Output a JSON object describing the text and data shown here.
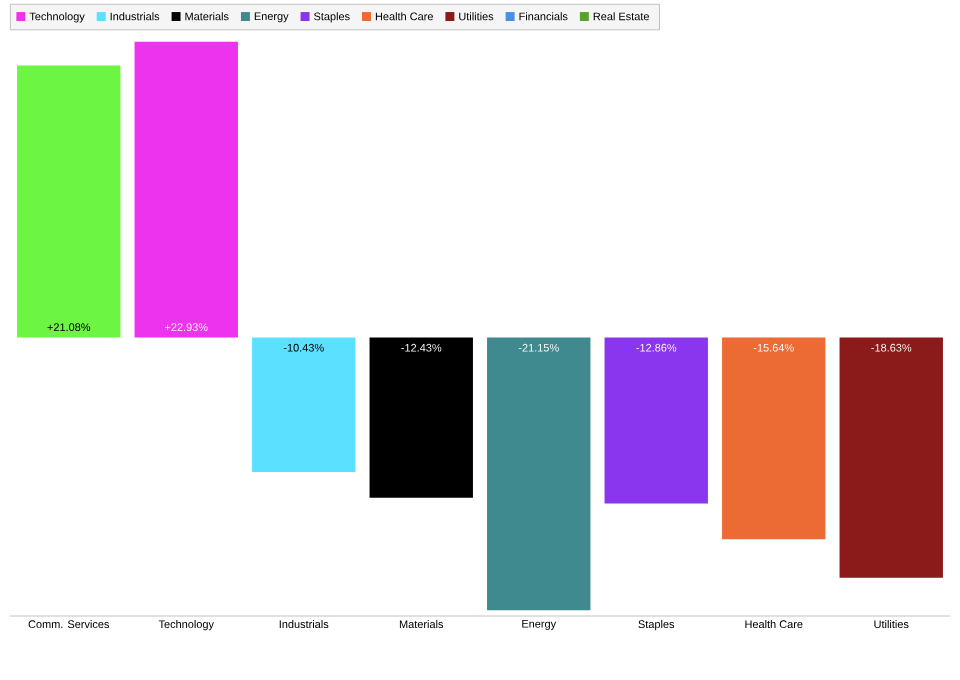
{
  "chart_data": {
    "type": "bar",
    "categories": [
      "Comm. Services",
      "Technology",
      "Industrials",
      "Materials",
      "Energy",
      "Staples",
      "Health Care",
      "Utilities"
    ],
    "series": [
      {
        "color": "#6cf542",
        "values": [
          21.08,
          null,
          null,
          null,
          null,
          null,
          null,
          null
        ],
        "value_labels": [
          "+21.08%",
          null,
          null,
          null,
          null,
          null,
          null,
          null
        ]
      },
      {
        "name": "Technology",
        "color": "#ee33ee",
        "values": [
          null,
          22.93,
          null,
          null,
          null,
          null,
          null,
          null
        ],
        "value_labels": [
          null,
          "+22.93%",
          null,
          null,
          null,
          null,
          null,
          null
        ]
      },
      {
        "name": "Industrials",
        "color": "#5ce0ff",
        "values": [
          null,
          null,
          -10.43,
          null,
          null,
          null,
          null,
          null
        ],
        "value_labels": [
          null,
          null,
          "-10.43%",
          null,
          null,
          null,
          null,
          null
        ]
      },
      {
        "name": "Materials",
        "color": "#000000",
        "values": [
          null,
          null,
          null,
          -12.43,
          null,
          null,
          null,
          null
        ],
        "value_labels": [
          null,
          null,
          null,
          "-12.43%",
          null,
          null,
          null,
          null
        ]
      },
      {
        "name": "Energy",
        "color": "#3e8a8e",
        "values": [
          null,
          null,
          null,
          null,
          -21.15,
          null,
          null,
          null
        ],
        "value_labels": [
          null,
          null,
          null,
          null,
          "-21.15%",
          null,
          null,
          null
        ]
      },
      {
        "name": "Staples",
        "color": "#8a35ee",
        "values": [
          null,
          null,
          null,
          null,
          null,
          -12.86,
          null,
          null
        ],
        "value_labels": [
          null,
          null,
          null,
          null,
          null,
          "-12.86%",
          null,
          null
        ]
      },
      {
        "name": "Health Care",
        "color": "#ec6b35",
        "values": [
          null,
          null,
          null,
          null,
          null,
          null,
          -15.64,
          null
        ],
        "value_labels": [
          null,
          null,
          null,
          null,
          null,
          null,
          "-15.64%",
          null
        ]
      },
      {
        "name": "Utilities",
        "color": "#8b1a1a",
        "values": [
          null,
          null,
          null,
          null,
          null,
          null,
          null,
          -18.63
        ],
        "value_labels": [
          null,
          null,
          null,
          null,
          null,
          null,
          null,
          "-18.63%"
        ]
      },
      {
        "name": "Financials",
        "color": "#4a90e2",
        "values": [
          null,
          null,
          null,
          null,
          null,
          null,
          null,
          null
        ]
      },
      {
        "name": "Real Estate",
        "color": "#5aa02c",
        "values": [
          null,
          null,
          null,
          null,
          null,
          null,
          null,
          null
        ]
      }
    ],
    "legend": "top"
  }
}
